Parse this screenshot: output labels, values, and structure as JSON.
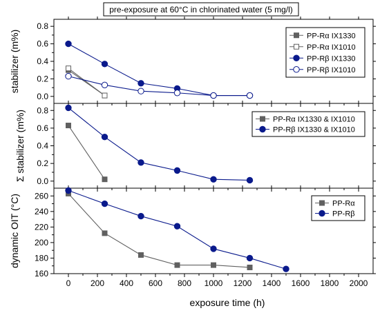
{
  "title": "pre-exposure at 60°C in chlorinated water (5 mg/l)",
  "chart_data": [
    {
      "type": "line",
      "ylabel": "stabilizer (m%)",
      "xlim": [
        -100,
        2100
      ],
      "ylim": [
        -0.08,
        0.88
      ],
      "yticks": [
        "0.0",
        "0.2",
        "0.4",
        "0.6",
        "0.8"
      ],
      "legend_position": "top-right",
      "series": [
        {
          "name": "PP-Rα IX1330",
          "color": "#606060",
          "marker": "square",
          "filled": true,
          "x": [
            0,
            250
          ],
          "y": [
            0.3,
            0.01
          ]
        },
        {
          "name": "PP-Rα IX1010",
          "color": "#606060",
          "marker": "square",
          "filled": false,
          "x": [
            0,
            250
          ],
          "y": [
            0.32,
            0.01
          ]
        },
        {
          "name": "PP-Rβ IX1330",
          "color": "#0a1a8c",
          "marker": "circle",
          "filled": true,
          "x": [
            0,
            250,
            500,
            750,
            1000,
            1250
          ],
          "y": [
            0.6,
            0.37,
            0.15,
            0.09,
            0.01,
            0.01
          ]
        },
        {
          "name": "PP-Rβ IX1010",
          "color": "#0a1a8c",
          "marker": "circle",
          "filled": false,
          "x": [
            0,
            250,
            500,
            750,
            1000,
            1250
          ],
          "y": [
            0.23,
            0.13,
            0.06,
            0.04,
            0.01,
            0.01
          ]
        }
      ]
    },
    {
      "type": "line",
      "ylabel": "Σ stabilizer (m%)",
      "xlim": [
        -100,
        2100
      ],
      "ylim": [
        -0.08,
        0.88
      ],
      "yticks": [
        "0.0",
        "0.2",
        "0.4",
        "0.6",
        "0.8"
      ],
      "legend_position": "top-right",
      "series": [
        {
          "name": "PP-Rα IX1330 & IX1010",
          "color": "#606060",
          "marker": "square",
          "filled": true,
          "x": [
            0,
            250
          ],
          "y": [
            0.63,
            0.02
          ]
        },
        {
          "name": "PP-Rβ IX1330 & IX1010",
          "color": "#0a1a8c",
          "marker": "circle",
          "filled": true,
          "x": [
            0,
            250,
            500,
            750,
            1000,
            1250
          ],
          "y": [
            0.83,
            0.5,
            0.21,
            0.12,
            0.02,
            0.01
          ]
        }
      ]
    },
    {
      "type": "line",
      "ylabel": "dynamic OIT (°C)",
      "xlabel": "exposure time (h)",
      "xlim": [
        -100,
        2100
      ],
      "ylim": [
        160,
        270
      ],
      "yticks": [
        "160",
        "180",
        "200",
        "220",
        "240",
        "260"
      ],
      "xticks": [
        "0",
        "200",
        "400",
        "600",
        "800",
        "1000",
        "1200",
        "1400",
        "1600",
        "1800",
        "2000"
      ],
      "legend_position": "top-right",
      "series": [
        {
          "name": "PP-Rα",
          "color": "#606060",
          "marker": "square",
          "filled": true,
          "x": [
            0,
            250,
            500,
            750,
            1000,
            1250
          ],
          "y": [
            263,
            212,
            184,
            171,
            171,
            168
          ]
        },
        {
          "name": "PP-Rβ",
          "color": "#0a1a8c",
          "marker": "circle",
          "filled": true,
          "x": [
            0,
            250,
            500,
            750,
            1000,
            1250,
            1500
          ],
          "y": [
            267,
            250,
            234,
            221,
            192,
            180,
            166
          ]
        }
      ]
    }
  ]
}
